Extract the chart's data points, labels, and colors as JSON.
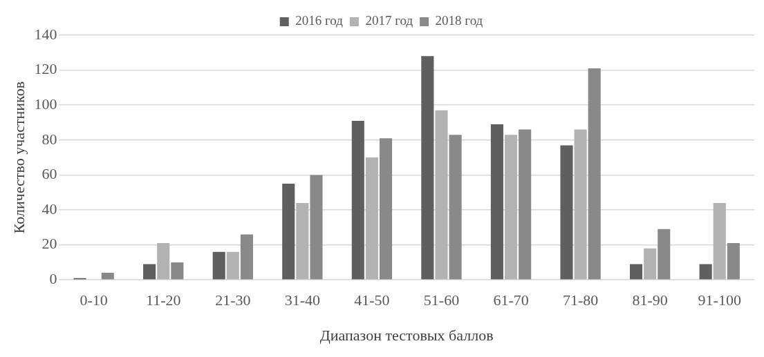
{
  "chart_data": {
    "type": "bar",
    "xlabel": "Диапазон тестовых баллов",
    "ylabel": "Количество участников",
    "categories": [
      "0-10",
      "11-20",
      "21-30",
      "31-40",
      "41-50",
      "51-60",
      "61-70",
      "71-80",
      "81-90",
      "91-100"
    ],
    "series": [
      {
        "name": "2016 год",
        "color": "#5f5f5f",
        "values": [
          1,
          9,
          16,
          55,
          91,
          128,
          89,
          77,
          9,
          9
        ]
      },
      {
        "name": "2017 год",
        "color": "#b2b2b2",
        "values": [
          0,
          21,
          16,
          44,
          70,
          97,
          83,
          86,
          18,
          44
        ]
      },
      {
        "name": "2018 год",
        "color": "#898989",
        "values": [
          4,
          10,
          26,
          60,
          81,
          83,
          86,
          121,
          29,
          21
        ]
      }
    ],
    "ylim": [
      0,
      140
    ],
    "yticks": [
      0,
      20,
      40,
      60,
      80,
      100,
      120,
      140
    ],
    "grid": "y",
    "legend": "top"
  }
}
